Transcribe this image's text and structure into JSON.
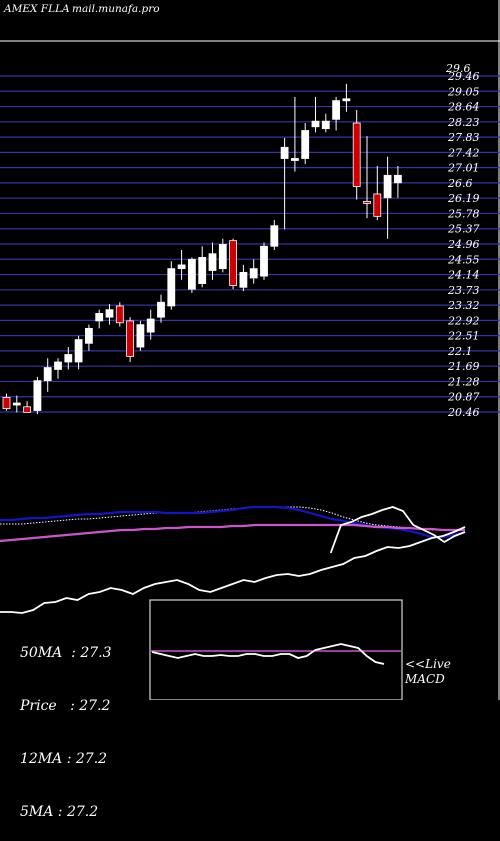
{
  "header": {
    "left": "AMEX  FLLA",
    "right": "mail.munafa.pro"
  },
  "legend": [
    {
      "label": "50MA",
      "value": "27.3"
    },
    {
      "label": "Price",
      "value": "27.2"
    },
    {
      "label": "12MA",
      "value": "27.2"
    },
    {
      "label": "5MA",
      "value": "27.2"
    }
  ],
  "macd_label_1": "<<Live",
  "macd_label_2": "MACD",
  "colors": {
    "up": "#ffffff",
    "down": "#cc0000",
    "grid": "#3333aa",
    "ma_fast": "#1515c8",
    "ma_slow": "#cc55cc",
    "line": "#ffffff"
  },
  "chart_data": {
    "type": "candlestick",
    "price_ticks": [
      "29.46",
      "29.05",
      "28.64",
      "28.23",
      "27.83",
      "27.42",
      "27.01",
      "26.6",
      "26.19",
      "25.78",
      "25.37",
      "24.96",
      "24.55",
      "24.14",
      "23.73",
      "23.32",
      "22.92",
      "22.51",
      "22.1",
      "21.69",
      "21.28",
      "20.87",
      "20.46"
    ],
    "top_tick_overlap": "29.6",
    "ylim": [
      20.46,
      29.46
    ],
    "candles": [
      {
        "o": 20.85,
        "h": 20.95,
        "l": 20.5,
        "c": 20.55
      },
      {
        "o": 20.65,
        "h": 20.9,
        "l": 20.45,
        "c": 20.7
      },
      {
        "o": 20.6,
        "h": 20.75,
        "l": 20.45,
        "c": 20.45
      },
      {
        "o": 20.5,
        "h": 21.4,
        "l": 20.4,
        "c": 21.3
      },
      {
        "o": 21.3,
        "h": 21.9,
        "l": 21.0,
        "c": 21.65
      },
      {
        "o": 21.6,
        "h": 21.9,
        "l": 21.35,
        "c": 21.8
      },
      {
        "o": 21.8,
        "h": 22.2,
        "l": 21.6,
        "c": 22.0
      },
      {
        "o": 21.8,
        "h": 22.5,
        "l": 21.6,
        "c": 22.4
      },
      {
        "o": 22.3,
        "h": 22.8,
        "l": 22.1,
        "c": 22.7
      },
      {
        "o": 22.9,
        "h": 23.2,
        "l": 22.7,
        "c": 23.1
      },
      {
        "o": 23.0,
        "h": 23.35,
        "l": 22.8,
        "c": 23.2
      },
      {
        "o": 23.3,
        "h": 23.4,
        "l": 22.75,
        "c": 22.85
      },
      {
        "o": 22.9,
        "h": 23.0,
        "l": 21.8,
        "c": 21.95
      },
      {
        "o": 22.2,
        "h": 22.9,
        "l": 22.1,
        "c": 22.8
      },
      {
        "o": 22.6,
        "h": 23.2,
        "l": 22.4,
        "c": 22.95
      },
      {
        "o": 23.0,
        "h": 23.6,
        "l": 22.85,
        "c": 23.4
      },
      {
        "o": 23.3,
        "h": 24.5,
        "l": 23.2,
        "c": 24.3
      },
      {
        "o": 24.3,
        "h": 24.8,
        "l": 24.0,
        "c": 24.4
      },
      {
        "o": 23.75,
        "h": 24.6,
        "l": 23.65,
        "c": 24.55
      },
      {
        "o": 23.9,
        "h": 24.9,
        "l": 23.8,
        "c": 24.6
      },
      {
        "o": 24.25,
        "h": 25.0,
        "l": 24.0,
        "c": 24.7
      },
      {
        "o": 24.3,
        "h": 25.1,
        "l": 24.2,
        "c": 24.95
      },
      {
        "o": 25.05,
        "h": 25.1,
        "l": 23.75,
        "c": 23.85
      },
      {
        "o": 23.8,
        "h": 24.4,
        "l": 23.7,
        "c": 24.2
      },
      {
        "o": 24.05,
        "h": 24.55,
        "l": 23.9,
        "c": 24.3
      },
      {
        "o": 24.1,
        "h": 25.0,
        "l": 24.0,
        "c": 24.9
      },
      {
        "o": 24.9,
        "h": 25.6,
        "l": 24.8,
        "c": 25.45
      },
      {
        "o": 27.25,
        "h": 27.8,
        "l": 25.35,
        "c": 27.55
      },
      {
        "o": 27.2,
        "h": 28.9,
        "l": 26.9,
        "c": 27.25
      },
      {
        "o": 27.25,
        "h": 28.2,
        "l": 27.1,
        "c": 28.0
      },
      {
        "o": 28.1,
        "h": 28.9,
        "l": 27.95,
        "c": 28.25
      },
      {
        "o": 28.05,
        "h": 28.45,
        "l": 27.95,
        "c": 28.25
      },
      {
        "o": 28.3,
        "h": 28.9,
        "l": 28.0,
        "c": 28.8
      },
      {
        "o": 28.8,
        "h": 29.25,
        "l": 28.5,
        "c": 28.85
      },
      {
        "o": 28.2,
        "h": 28.55,
        "l": 26.15,
        "c": 26.5
      },
      {
        "o": 26.1,
        "h": 27.85,
        "l": 25.65,
        "c": 26.05
      },
      {
        "o": 26.3,
        "h": 27.05,
        "l": 25.6,
        "c": 25.7
      },
      {
        "o": 26.2,
        "h": 27.3,
        "l": 25.1,
        "c": 26.8
      },
      {
        "o": 26.6,
        "h": 27.05,
        "l": 26.2,
        "c": 26.8
      }
    ],
    "ma_short": [
      524,
      524,
      524,
      523,
      522,
      521,
      520,
      519,
      519,
      518,
      517,
      516,
      515,
      514,
      513,
      513,
      513,
      513,
      512,
      511,
      510,
      509,
      508,
      507,
      507,
      507,
      507,
      507,
      508,
      510,
      513,
      517,
      520,
      523,
      525,
      526,
      527,
      528,
      529,
      530,
      530,
      530,
      530
    ],
    "ma_mid": [
      520,
      520,
      519,
      518,
      518,
      517,
      516,
      515,
      514,
      514,
      513,
      512,
      512,
      512,
      512,
      513,
      513,
      513,
      513,
      512,
      511,
      510,
      508,
      507,
      507,
      507,
      508,
      510,
      513,
      516,
      519,
      521,
      523,
      525,
      527,
      528,
      529,
      531,
      534,
      537,
      537,
      535,
      532
    ],
    "ma_long": [
      541,
      540,
      539,
      538,
      537,
      536,
      535,
      534,
      533,
      532,
      531,
      530,
      530,
      529,
      529,
      528,
      528,
      527,
      527,
      527,
      527,
      526,
      526,
      525,
      525,
      525,
      525,
      525,
      525,
      525,
      525,
      525,
      525,
      526,
      527,
      527,
      528,
      528,
      529,
      529,
      530,
      530,
      530
    ],
    "macd_line": [
      612,
      612,
      613,
      610,
      603,
      602,
      598,
      600,
      594,
      592,
      588,
      590,
      594,
      588,
      584,
      582,
      580,
      584,
      590,
      592,
      588,
      584,
      580,
      582,
      578,
      575,
      574,
      576,
      574,
      570,
      567,
      564,
      558,
      556,
      551,
      547,
      548,
      546,
      542,
      538,
      536,
      532,
      527
    ],
    "upper_line": [
      null,
      null,
      null,
      null,
      null,
      null,
      null,
      null,
      null,
      null,
      null,
      null,
      null,
      null,
      null,
      null,
      null,
      null,
      null,
      null,
      null,
      null,
      null,
      null,
      null,
      null,
      null,
      null,
      null,
      null,
      null,
      null,
      553,
      525,
      522,
      517,
      514,
      510,
      507,
      511,
      525,
      530,
      535,
      542,
      536,
      532
    ],
    "macd_panel": {
      "line": [
        652,
        654,
        656,
        658,
        656,
        654,
        656,
        656,
        655,
        656,
        656,
        654,
        654,
        656,
        656,
        654,
        654,
        658,
        656,
        650,
        648,
        646,
        644,
        646,
        648,
        656,
        662,
        664
      ],
      "signal": 651
    }
  }
}
